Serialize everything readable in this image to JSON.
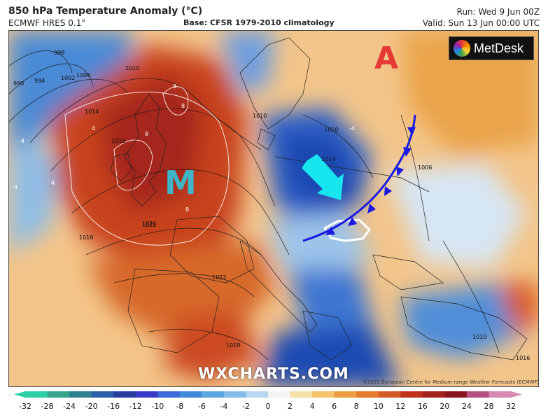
{
  "header": {
    "title": "850 hPa Temperature Anomaly (°C)",
    "model": "ECMWF HRES 0.1°",
    "base": "Base: CFSR 1979-2010 climatology",
    "run": "Run: Wed 9 Jun 00Z",
    "valid": "Valid: Sun 13 Jun 00:00 UTC"
  },
  "logo": {
    "text": "MetDesk",
    "icon": "metdesk-color-wheel-icon"
  },
  "watermark": "WXCHARTS.COM",
  "copyright": "©2021 European Centre for Medium-range Weather Forecasts (ECMWF)",
  "annotations": {
    "letter_a": "A",
    "letter_m": "M",
    "arrow_icon": "cyan-arrow-icon",
    "front_icon": "cold-front-icon",
    "country_outline_icon": "hungary-outline-icon"
  },
  "colors": {
    "warm_anomaly": "#c0311c",
    "cold_anomaly": "#1f5fc4",
    "front": "#1a1ae0",
    "arrow": "#18e6ee",
    "letter_a": "#e53935",
    "letter_m": "#3fb6c8"
  },
  "isobar_labels": [
    "990",
    "994",
    "998",
    "1002",
    "1006",
    "1010",
    "1014",
    "1018",
    "1022",
    "1026",
    "1018",
    "1022",
    "1010",
    "1014",
    "1010",
    "1006",
    "1018",
    "1016",
    "1010"
  ],
  "contour_labels": [
    "8",
    "8",
    "8",
    "8",
    "4",
    "4",
    "-4",
    "-4",
    "-4"
  ],
  "colorbar": {
    "ticks": [
      "-32",
      "-28",
      "-24",
      "-20",
      "-16",
      "-12",
      "-10",
      "-8",
      "-6",
      "-4",
      "-2",
      "0",
      "2",
      "4",
      "6",
      "8",
      "10",
      "12",
      "16",
      "20",
      "24",
      "28",
      "32"
    ],
    "colors": [
      "#2ccfa8",
      "#38a58c",
      "#2d7f8e",
      "#2c5ea8",
      "#2b3ea0",
      "#3a3ac8",
      "#3d6ad8",
      "#3f8ad8",
      "#5aa6e0",
      "#86bde8",
      "#b8d6f0",
      "#f2f2f2",
      "#f6e0a6",
      "#f4c36c",
      "#ee9e3e",
      "#e57a2c",
      "#d45a24",
      "#c0311c",
      "#a2201e",
      "#8a1420",
      "#b45080",
      "#d88ab2"
    ]
  }
}
